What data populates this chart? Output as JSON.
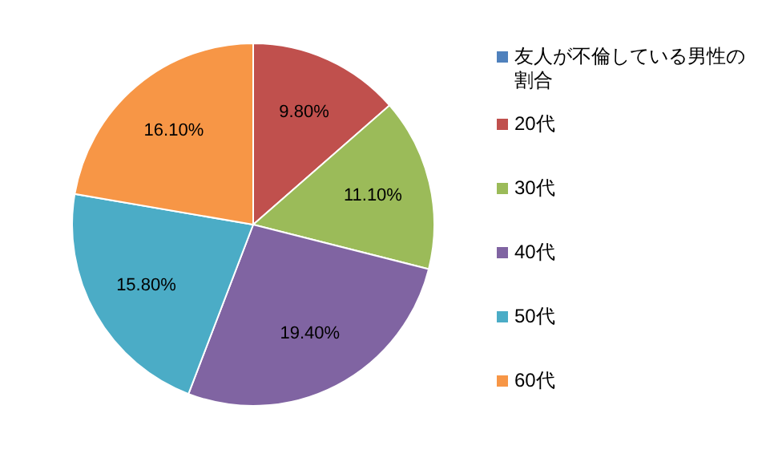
{
  "chart_data": {
    "type": "pie",
    "categories": [
      "友人が不倫している男性の割合",
      "20代",
      "30代",
      "40代",
      "50代",
      "60代"
    ],
    "values": [
      null,
      9.8,
      11.1,
      19.4,
      15.8,
      16.1
    ],
    "colors": [
      "#4f81bd",
      "#c0504d",
      "#9bbb59",
      "#8064a2",
      "#4bacc6",
      "#f79646"
    ],
    "value_labels": [
      null,
      "9.80%",
      "11.10%",
      "19.40%",
      "15.80%",
      "16.10%"
    ],
    "legend": "right"
  }
}
